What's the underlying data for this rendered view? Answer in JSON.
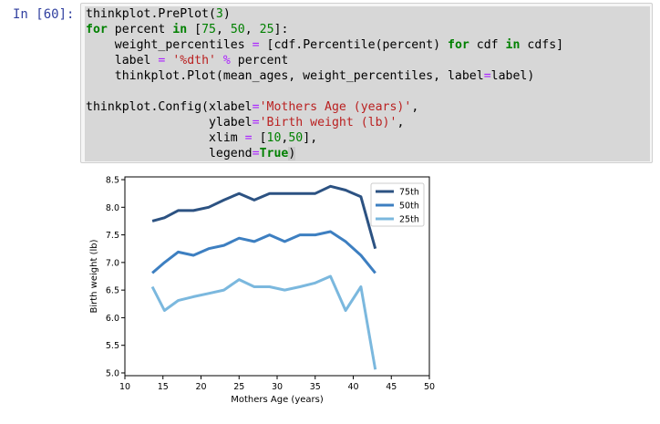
{
  "cell": {
    "prompt": "In [60]:",
    "code_lines": [
      [
        {
          "t": "thinkplot.PrePlot(",
          "c": "p"
        },
        {
          "t": "3",
          "c": "num"
        },
        {
          "t": ")",
          "c": "p"
        }
      ],
      [
        {
          "t": "for",
          "c": "kw"
        },
        {
          "t": " percent ",
          "c": "p"
        },
        {
          "t": "in",
          "c": "kw"
        },
        {
          "t": " [",
          "c": "p"
        },
        {
          "t": "75",
          "c": "num"
        },
        {
          "t": ", ",
          "c": "p"
        },
        {
          "t": "50",
          "c": "num"
        },
        {
          "t": ", ",
          "c": "p"
        },
        {
          "t": "25",
          "c": "num"
        },
        {
          "t": "]:",
          "c": "p"
        }
      ],
      [
        {
          "t": "    weight_percentiles ",
          "c": "p"
        },
        {
          "t": "=",
          "c": "op"
        },
        {
          "t": " [cdf.Percentile(percent) ",
          "c": "p"
        },
        {
          "t": "for",
          "c": "kw"
        },
        {
          "t": " cdf ",
          "c": "p"
        },
        {
          "t": "in",
          "c": "kw"
        },
        {
          "t": " cdfs]",
          "c": "p"
        }
      ],
      [
        {
          "t": "    label ",
          "c": "p"
        },
        {
          "t": "=",
          "c": "op"
        },
        {
          "t": " ",
          "c": "p"
        },
        {
          "t": "'%dth'",
          "c": "str"
        },
        {
          "t": " ",
          "c": "p"
        },
        {
          "t": "%",
          "c": "op"
        },
        {
          "t": " percent",
          "c": "p"
        }
      ],
      [
        {
          "t": "    thinkplot.Plot(mean_ages, weight_percentiles, label",
          "c": "p"
        },
        {
          "t": "=",
          "c": "op"
        },
        {
          "t": "label)",
          "c": "p"
        }
      ],
      [],
      [
        {
          "t": "thinkplot.Config(xlabel",
          "c": "p"
        },
        {
          "t": "=",
          "c": "op"
        },
        {
          "t": "'Mothers Age (years)'",
          "c": "str"
        },
        {
          "t": ",",
          "c": "p"
        }
      ],
      [
        {
          "t": "                 ylabel",
          "c": "p"
        },
        {
          "t": "=",
          "c": "op"
        },
        {
          "t": "'Birth weight (lb)'",
          "c": "str"
        },
        {
          "t": ",",
          "c": "p"
        }
      ],
      [
        {
          "t": "                 xlim ",
          "c": "p"
        },
        {
          "t": "=",
          "c": "op"
        },
        {
          "t": " [",
          "c": "p"
        },
        {
          "t": "10",
          "c": "num"
        },
        {
          "t": ",",
          "c": "p"
        },
        {
          "t": "50",
          "c": "num"
        },
        {
          "t": "],",
          "c": "p"
        }
      ],
      [
        {
          "t": "                 legend",
          "c": "p"
        },
        {
          "t": "=",
          "c": "op"
        },
        {
          "t": "True",
          "c": "bool"
        },
        {
          "t": ")",
          "c": "p"
        }
      ]
    ]
  },
  "chart_data": {
    "type": "line",
    "xlabel": "Mothers Age (years)",
    "ylabel": "Birth weight (lb)",
    "xlim": [
      10,
      50
    ],
    "ylim": [
      4.95,
      8.55
    ],
    "xticks": [
      "10",
      "15",
      "20",
      "25",
      "30",
      "35",
      "40",
      "45",
      "50"
    ],
    "yticks": [
      "5.0",
      "5.5",
      "6.0",
      "6.5",
      "7.0",
      "7.5",
      "8.0",
      "8.5"
    ],
    "legend_position": "top-right",
    "grid": false,
    "x": [
      13.6,
      15.2,
      17.0,
      19.0,
      21.0,
      23.0,
      25.0,
      27.0,
      29.0,
      31.0,
      33.0,
      35.0,
      37.0,
      39.0,
      41.0,
      42.9
    ],
    "series": [
      {
        "name": "75th",
        "color": "#2c5282",
        "values": [
          7.75,
          7.81,
          7.94,
          7.94,
          8.0,
          8.13,
          8.25,
          8.13,
          8.25,
          8.25,
          8.25,
          8.25,
          8.38,
          8.31,
          8.19,
          7.25
        ]
      },
      {
        "name": "50th",
        "color": "#3d7fc1",
        "values": [
          6.81,
          7.0,
          7.19,
          7.13,
          7.25,
          7.31,
          7.44,
          7.38,
          7.5,
          7.38,
          7.5,
          7.5,
          7.56,
          7.38,
          7.13,
          6.81
        ]
      },
      {
        "name": "25th",
        "color": "#7bb8de",
        "values": [
          6.56,
          6.13,
          6.31,
          6.38,
          6.44,
          6.5,
          6.69,
          6.56,
          6.56,
          6.5,
          6.56,
          6.63,
          6.75,
          6.13,
          6.56,
          5.06
        ]
      }
    ]
  }
}
